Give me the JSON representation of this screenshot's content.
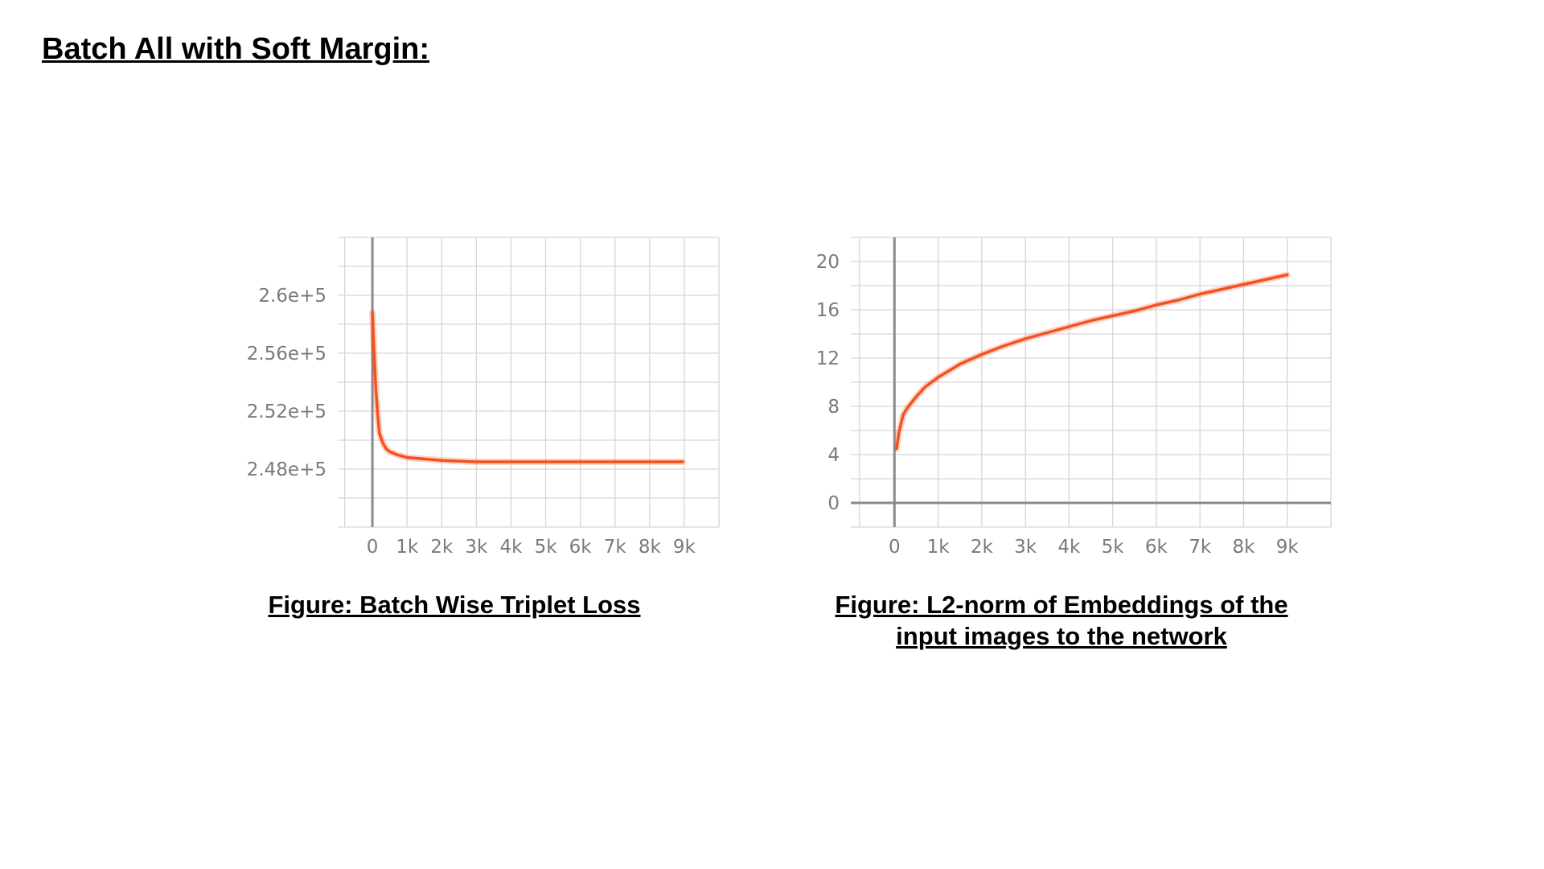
{
  "page": {
    "title": "Batch All with Soft Margin:",
    "caption_left": "Figure: Batch Wise Triplet Loss",
    "caption_right_line1": "Figure: L2-norm of Embeddings of the",
    "caption_right_line2": "input images to the network"
  },
  "style": {
    "series_color": "#f4511e",
    "grid_color": "#d6d6d6",
    "axis_color": "#8a8a8a"
  },
  "chart_data": [
    {
      "type": "line",
      "title": "",
      "xlabel": "",
      "ylabel": "",
      "xlim": [
        -1000,
        10000
      ],
      "ylim": [
        244000,
        264000
      ],
      "x_ticks": [
        0,
        1000,
        2000,
        3000,
        4000,
        5000,
        6000,
        7000,
        8000,
        9000
      ],
      "x_tick_labels": [
        "0",
        "1k",
        "2k",
        "3k",
        "4k",
        "5k",
        "6k",
        "7k",
        "8k",
        "9k"
      ],
      "y_ticks": [
        248000,
        252000,
        256000,
        260000
      ],
      "y_tick_labels": [
        "2.48e+5",
        "2.52e+5",
        "2.56e+5",
        "2.6e+5"
      ],
      "grid": true,
      "series": [
        {
          "x": [
            0,
            50,
            100,
            150,
            200,
            300,
            400,
            500,
            700,
            1000,
            1500,
            2000,
            3000,
            4000,
            5000,
            6000,
            7000,
            8000,
            8950
          ],
          "y": [
            258800,
            256000,
            253500,
            251800,
            250500,
            249800,
            249400,
            249200,
            249000,
            248800,
            248700,
            248600,
            248500,
            248500,
            248500,
            248500,
            248500,
            248500,
            248500
          ]
        }
      ]
    },
    {
      "type": "line",
      "title": "",
      "xlabel": "",
      "ylabel": "",
      "xlim": [
        -1000,
        10000
      ],
      "ylim": [
        -2,
        22
      ],
      "x_ticks": [
        0,
        1000,
        2000,
        3000,
        4000,
        5000,
        6000,
        7000,
        8000,
        9000
      ],
      "x_tick_labels": [
        "0",
        "1k",
        "2k",
        "3k",
        "4k",
        "5k",
        "6k",
        "7k",
        "8k",
        "9k"
      ],
      "y_ticks": [
        0,
        4,
        8,
        12,
        16,
        20
      ],
      "y_tick_labels": [
        "0",
        "4",
        "8",
        "12",
        "16",
        "20"
      ],
      "grid": true,
      "series": [
        {
          "x": [
            50,
            100,
            200,
            300,
            500,
            700,
            1000,
            1500,
            2000,
            2500,
            3000,
            3500,
            4000,
            4500,
            5000,
            5500,
            6000,
            6500,
            7000,
            7500,
            8000,
            8500,
            9000
          ],
          "y": [
            4.5,
            5.8,
            7.3,
            7.9,
            8.8,
            9.6,
            10.4,
            11.5,
            12.3,
            13.0,
            13.6,
            14.1,
            14.6,
            15.1,
            15.5,
            15.9,
            16.4,
            16.8,
            17.3,
            17.7,
            18.1,
            18.5,
            18.9
          ]
        }
      ]
    }
  ]
}
